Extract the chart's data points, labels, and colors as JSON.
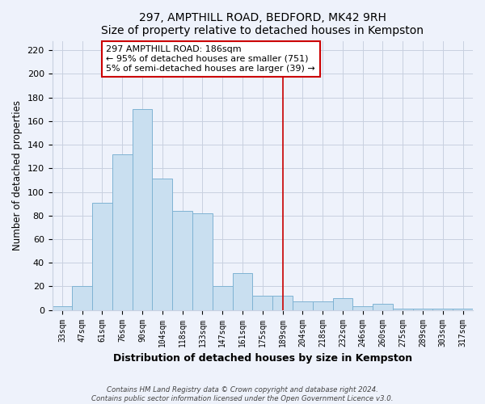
{
  "title": "297, AMPTHILL ROAD, BEDFORD, MK42 9RH",
  "subtitle": "Size of property relative to detached houses in Kempston",
  "xlabel": "Distribution of detached houses by size in Kempston",
  "ylabel": "Number of detached properties",
  "bar_labels": [
    "33sqm",
    "47sqm",
    "61sqm",
    "76sqm",
    "90sqm",
    "104sqm",
    "118sqm",
    "133sqm",
    "147sqm",
    "161sqm",
    "175sqm",
    "189sqm",
    "204sqm",
    "218sqm",
    "232sqm",
    "246sqm",
    "260sqm",
    "275sqm",
    "289sqm",
    "303sqm",
    "317sqm"
  ],
  "bar_heights": [
    3,
    20,
    91,
    132,
    170,
    111,
    84,
    82,
    20,
    31,
    12,
    12,
    7,
    7,
    10,
    3,
    5,
    1,
    1,
    1,
    1
  ],
  "bar_color": "#c9dff0",
  "bar_edge_color": "#7fb3d3",
  "vline_x_index": 11,
  "vline_color": "#cc0000",
  "annotation_title": "297 AMPTHILL ROAD: 186sqm",
  "annotation_line1": "← 95% of detached houses are smaller (751)",
  "annotation_line2": "5% of semi-detached houses are larger (39) →",
  "ylim": [
    0,
    228
  ],
  "yticks": [
    0,
    20,
    40,
    60,
    80,
    100,
    120,
    140,
    160,
    180,
    200,
    220
  ],
  "footer1": "Contains HM Land Registry data © Crown copyright and database right 2024.",
  "footer2": "Contains public sector information licensed under the Open Government Licence v3.0.",
  "bg_color": "#eef2fb",
  "plot_bg_color": "#eef2fb",
  "grid_color": "#c8d0e0"
}
